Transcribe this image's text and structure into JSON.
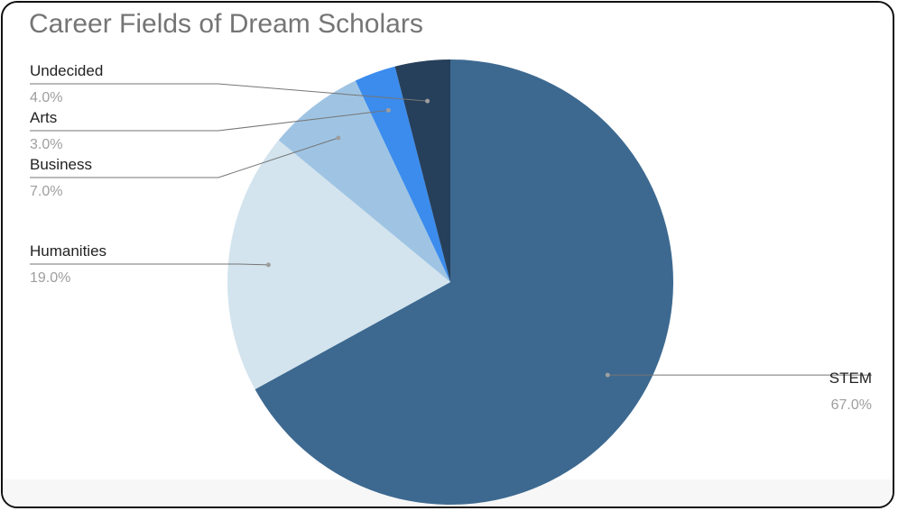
{
  "title": "Career Fields of Dream Scholars",
  "chart_data": {
    "type": "pie",
    "title": "Career Fields of Dream Scholars",
    "slices": [
      {
        "label": "STEM",
        "value": 67.0,
        "value_label": "67.0%",
        "color": "#3d6990"
      },
      {
        "label": "Humanities",
        "value": 19.0,
        "value_label": "19.0%",
        "color": "#d3e4ee"
      },
      {
        "label": "Business",
        "value": 7.0,
        "value_label": "7.0%",
        "color": "#9fc4e3"
      },
      {
        "label": "Arts",
        "value": 3.0,
        "value_label": "3.0%",
        "color": "#3b8ced"
      },
      {
        "label": "Undecided",
        "value": 4.0,
        "value_label": "4.0%",
        "color": "#263f5b"
      }
    ],
    "start_angle_deg": 0,
    "direction": "clockwise",
    "legend": "none",
    "labels": "outside with leader lines"
  }
}
